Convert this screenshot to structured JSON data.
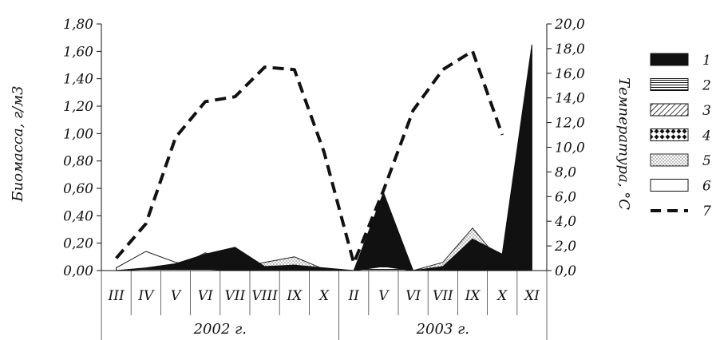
{
  "chart_data": {
    "type": "area",
    "y_left": {
      "label": "Биомасса, г/м3",
      "ticks": [
        "0,00",
        "0,20",
        "0,40",
        "0,60",
        "0,80",
        "1,00",
        "1,20",
        "1,40",
        "1,60",
        "1,80"
      ],
      "range": [
        0,
        1.8
      ]
    },
    "y_right": {
      "label": "Температура, °С",
      "ticks": [
        "0,0",
        "2,0",
        "4,0",
        "6,0",
        "8,0",
        "10,0",
        "12,0",
        "14,0",
        "16,0",
        "18,0",
        "20,0"
      ],
      "range": [
        0,
        20
      ]
    },
    "categories": [
      "III",
      "IV",
      "V",
      "VI",
      "VII",
      "VIII",
      "IX",
      "X",
      "II",
      "V",
      "VI",
      "VII",
      "IX",
      "X",
      "XI"
    ],
    "year_groups": [
      {
        "label": "2002 г.",
        "categories": [
          "III",
          "IV",
          "V",
          "VI",
          "VII",
          "VIII",
          "IX",
          "X"
        ]
      },
      {
        "label": "2003 г.",
        "categories": [
          "II",
          "V",
          "VI",
          "VII",
          "IX",
          "X",
          "XI"
        ]
      }
    ],
    "series": [
      {
        "name": "1",
        "axis": "left",
        "values": [
          0.0,
          0.02,
          0.05,
          0.12,
          0.17,
          0.03,
          0.04,
          0.02,
          0.0,
          0.57,
          0.0,
          0.03,
          0.23,
          0.12,
          1.65
        ]
      },
      {
        "name": "2",
        "axis": "left",
        "values": [
          0.0,
          0.01,
          0.01,
          0.01,
          0.0,
          0.0,
          0.0,
          0.0,
          0.0,
          0.03,
          0.0,
          0.0,
          0.0,
          0.0,
          0.0
        ]
      },
      {
        "name": "3",
        "axis": "left",
        "values": [
          0.0,
          0.01,
          0.01,
          0.0,
          0.0,
          0.0,
          0.0,
          0.0,
          0.0,
          0.02,
          0.0,
          0.0,
          0.0,
          0.0,
          0.0
        ]
      },
      {
        "name": "4",
        "axis": "left",
        "values": [
          0.0,
          0.0,
          0.0,
          0.0,
          0.0,
          0.0,
          0.0,
          0.0,
          0.0,
          0.02,
          0.0,
          0.0,
          0.0,
          0.0,
          0.0
        ]
      },
      {
        "name": "5",
        "axis": "left",
        "values": [
          0.0,
          0.01,
          0.02,
          0.13,
          0.02,
          0.06,
          0.1,
          0.01,
          0.0,
          0.04,
          0.0,
          0.06,
          0.31,
          0.05,
          0.0
        ]
      },
      {
        "name": "6",
        "axis": "left",
        "values": [
          0.02,
          0.14,
          0.06,
          0.02,
          0.01,
          0.01,
          0.01,
          0.01,
          0.0,
          0.05,
          0.0,
          0.01,
          0.02,
          0.01,
          0.0
        ]
      },
      {
        "name": "7",
        "axis": "right",
        "values": [
          1.0,
          3.8,
          10.8,
          13.7,
          14.1,
          16.5,
          16.3,
          9.6,
          0.6,
          6.5,
          13.0,
          16.3,
          17.8,
          11.0,
          null
        ]
      }
    ],
    "legend": {
      "position": "right",
      "entries": [
        "1",
        "2",
        "3",
        "4",
        "5",
        "6",
        "7"
      ]
    },
    "grid": false
  }
}
